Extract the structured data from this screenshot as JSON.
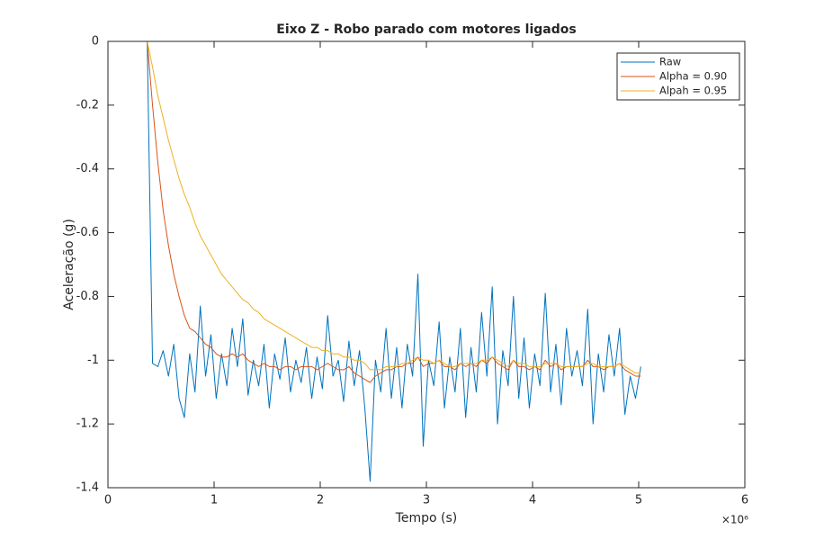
{
  "chart_data": {
    "type": "line",
    "title": "Eixo Z - Robo parado com motores ligados",
    "x_label": "Tempo (s)",
    "y_label": "Aceleração (g)",
    "x_multiplier": "×10⁶",
    "xlim": [
      0,
      6
    ],
    "xticks": [
      0,
      1,
      2,
      3,
      4,
      5,
      6
    ],
    "ylim": [
      -1.4,
      0
    ],
    "yticks": [
      -1.4,
      -1.2,
      -1,
      -0.8,
      -0.6,
      -0.4,
      -0.2,
      0
    ],
    "grid": false,
    "legend_position": "top-right",
    "x": [
      0.37,
      0.42,
      0.47,
      0.52,
      0.57,
      0.62,
      0.67,
      0.72,
      0.77,
      0.82,
      0.87,
      0.92,
      0.97,
      1.02,
      1.07,
      1.12,
      1.17,
      1.22,
      1.27,
      1.32,
      1.37,
      1.42,
      1.47,
      1.52,
      1.57,
      1.62,
      1.67,
      1.72,
      1.77,
      1.82,
      1.87,
      1.92,
      1.97,
      2.02,
      2.07,
      2.12,
      2.17,
      2.22,
      2.27,
      2.32,
      2.37,
      2.42,
      2.47,
      2.52,
      2.57,
      2.62,
      2.67,
      2.72,
      2.77,
      2.82,
      2.87,
      2.92,
      2.97,
      3.02,
      3.07,
      3.12,
      3.17,
      3.22,
      3.27,
      3.32,
      3.37,
      3.42,
      3.47,
      3.52,
      3.57,
      3.62,
      3.67,
      3.72,
      3.77,
      3.82,
      3.87,
      3.92,
      3.97,
      4.02,
      4.07,
      4.12,
      4.17,
      4.22,
      4.27,
      4.32,
      4.37,
      4.42,
      4.47,
      4.52,
      4.57,
      4.62,
      4.67,
      4.72,
      4.77,
      4.82,
      4.87,
      4.92,
      4.97,
      5.02
    ],
    "series": [
      {
        "name": "Raw",
        "color": "#0072BD",
        "values": [
          0,
          -1.01,
          -1.02,
          -0.97,
          -1.05,
          -0.95,
          -1.12,
          -1.18,
          -0.98,
          -1.1,
          -0.83,
          -1.05,
          -0.92,
          -1.12,
          -0.98,
          -1.08,
          -0.9,
          -1.02,
          -0.87,
          -1.11,
          -1.0,
          -1.08,
          -0.95,
          -1.15,
          -0.98,
          -1.06,
          -0.93,
          -1.1,
          -1.0,
          -1.07,
          -0.96,
          -1.12,
          -0.99,
          -1.09,
          -0.86,
          -1.05,
          -1.0,
          -1.13,
          -0.94,
          -1.08,
          -0.97,
          -1.15,
          -1.38,
          -1.0,
          -1.1,
          -0.9,
          -1.12,
          -0.96,
          -1.15,
          -0.95,
          -1.05,
          -0.73,
          -1.27,
          -1.0,
          -1.08,
          -0.88,
          -1.15,
          -0.99,
          -1.1,
          -0.9,
          -1.18,
          -0.96,
          -1.1,
          -0.85,
          -1.05,
          -0.77,
          -1.2,
          -0.97,
          -1.08,
          -0.8,
          -1.12,
          -0.93,
          -1.15,
          -0.98,
          -1.08,
          -0.79,
          -1.1,
          -0.95,
          -1.14,
          -0.9,
          -1.05,
          -0.97,
          -1.08,
          -0.84,
          -1.2,
          -0.98,
          -1.1,
          -0.92,
          -1.05,
          -0.9,
          -1.17,
          -1.05,
          -1.12,
          -1.02
        ]
      },
      {
        "name": "Alpha = 0.90",
        "color": "#D95319",
        "values": [
          0,
          -0.2,
          -0.38,
          -0.53,
          -0.64,
          -0.73,
          -0.8,
          -0.86,
          -0.9,
          -0.91,
          -0.93,
          -0.95,
          -0.96,
          -0.98,
          -0.99,
          -0.99,
          -0.98,
          -0.99,
          -0.98,
          -1.0,
          -1.01,
          -1.02,
          -1.01,
          -1.02,
          -1.02,
          -1.03,
          -1.02,
          -1.02,
          -1.03,
          -1.02,
          -1.02,
          -1.02,
          -1.03,
          -1.02,
          -1.01,
          -1.02,
          -1.03,
          -1.03,
          -1.02,
          -1.04,
          -1.05,
          -1.06,
          -1.07,
          -1.05,
          -1.04,
          -1.03,
          -1.03,
          -1.02,
          -1.02,
          -1.01,
          -1.01,
          -0.99,
          -1.02,
          -1.01,
          -1.01,
          -1.0,
          -1.02,
          -1.02,
          -1.03,
          -1.01,
          -1.02,
          -1.01,
          -1.02,
          -1.0,
          -1.01,
          -0.99,
          -1.01,
          -1.02,
          -1.03,
          -1.0,
          -1.02,
          -1.02,
          -1.03,
          -1.02,
          -1.03,
          -1.0,
          -1.02,
          -1.01,
          -1.03,
          -1.02,
          -1.02,
          -1.02,
          -1.02,
          -1.0,
          -1.02,
          -1.02,
          -1.03,
          -1.02,
          -1.02,
          -1.01,
          -1.03,
          -1.04,
          -1.05,
          -1.05
        ]
      },
      {
        "name": "Alpah = 0.95",
        "color": "#EDB120",
        "values": [
          0,
          -0.08,
          -0.17,
          -0.24,
          -0.31,
          -0.37,
          -0.43,
          -0.48,
          -0.52,
          -0.57,
          -0.61,
          -0.64,
          -0.67,
          -0.7,
          -0.73,
          -0.75,
          -0.77,
          -0.79,
          -0.81,
          -0.82,
          -0.84,
          -0.85,
          -0.87,
          -0.88,
          -0.89,
          -0.9,
          -0.91,
          -0.92,
          -0.93,
          -0.94,
          -0.95,
          -0.96,
          -0.96,
          -0.97,
          -0.97,
          -0.98,
          -0.98,
          -0.99,
          -0.99,
          -1.0,
          -1.0,
          -1.01,
          -1.03,
          -1.03,
          -1.03,
          -1.02,
          -1.02,
          -1.02,
          -1.01,
          -1.01,
          -1.0,
          -0.99,
          -1.0,
          -1.0,
          -1.01,
          -1.0,
          -1.01,
          -1.02,
          -1.02,
          -1.01,
          -1.01,
          -1.01,
          -1.01,
          -1.0,
          -1.0,
          -0.99,
          -1.0,
          -1.01,
          -1.02,
          -1.0,
          -1.01,
          -1.01,
          -1.02,
          -1.02,
          -1.02,
          -1.01,
          -1.01,
          -1.01,
          -1.02,
          -1.02,
          -1.02,
          -1.02,
          -1.02,
          -1.01,
          -1.01,
          -1.02,
          -1.02,
          -1.02,
          -1.02,
          -1.01,
          -1.02,
          -1.03,
          -1.04,
          -1.04
        ]
      }
    ]
  }
}
